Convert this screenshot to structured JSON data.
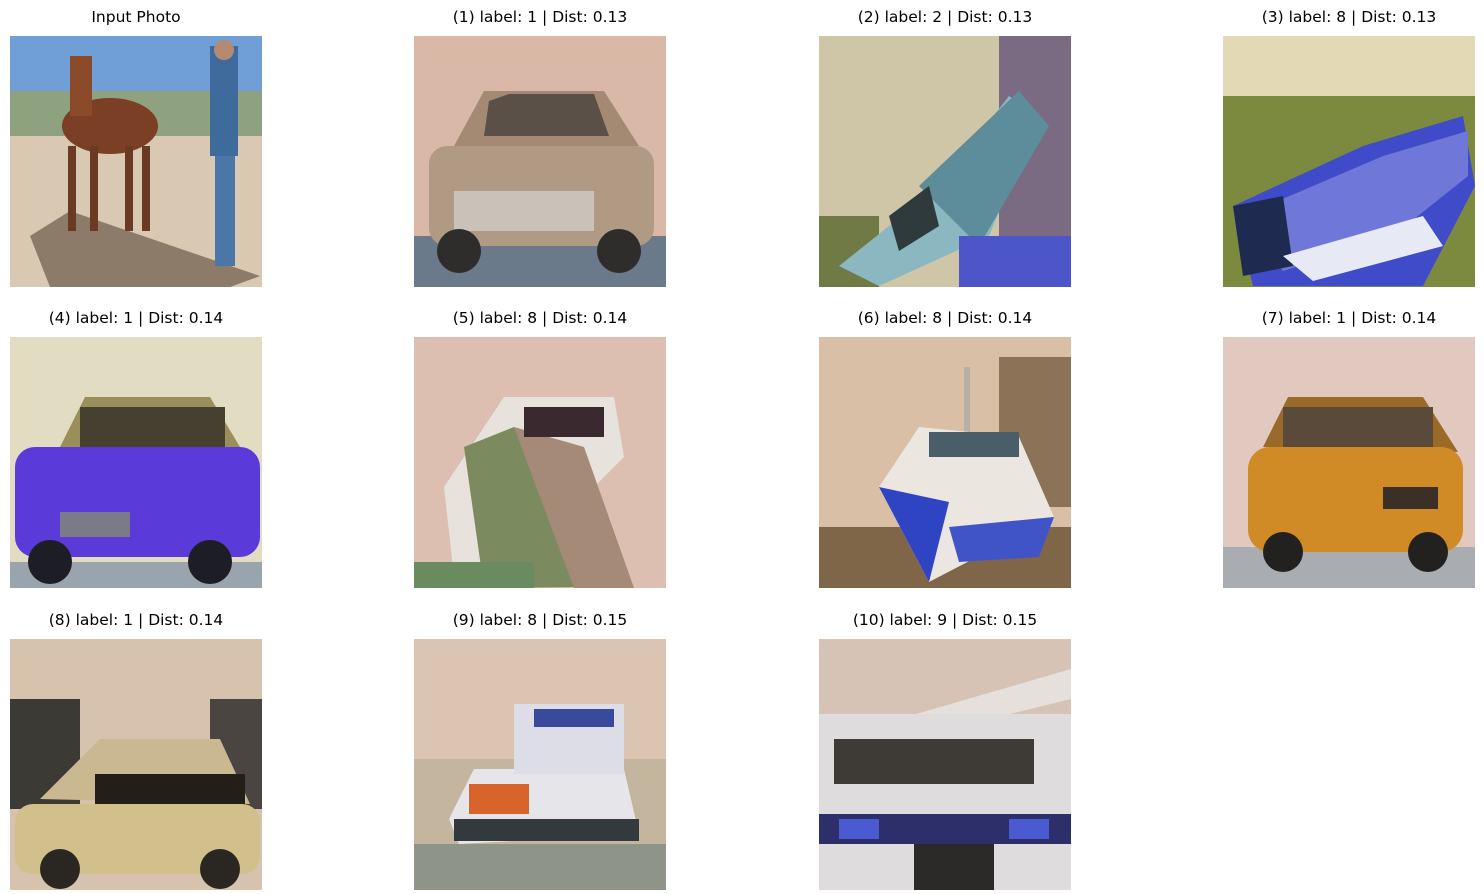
{
  "panels": [
    {
      "title": "Input Photo",
      "subject": "horse-and-person-photo"
    },
    {
      "title": "(1) label: 1 | Dist: 0.13",
      "subject": "car-photo"
    },
    {
      "title": "(2) label: 2 | Dist: 0.13",
      "subject": "bird-photo"
    },
    {
      "title": "(3) label: 8 | Dist: 0.13",
      "subject": "ship-photo"
    },
    {
      "title": "(4) label: 1 | Dist: 0.14",
      "subject": "car-photo"
    },
    {
      "title": "(5) label: 8 | Dist: 0.14",
      "subject": "ship-photo"
    },
    {
      "title": "(6) label: 8 | Dist: 0.14",
      "subject": "ship-photo"
    },
    {
      "title": "(7) label: 1 | Dist: 0.14",
      "subject": "car-photo"
    },
    {
      "title": "(8) label: 1 | Dist: 0.14",
      "subject": "car-photo"
    },
    {
      "title": "(9) label: 8 | Dist: 0.15",
      "subject": "ship-photo"
    },
    {
      "title": "(10) label: 9 | Dist: 0.15",
      "subject": "truck-photo"
    }
  ]
}
